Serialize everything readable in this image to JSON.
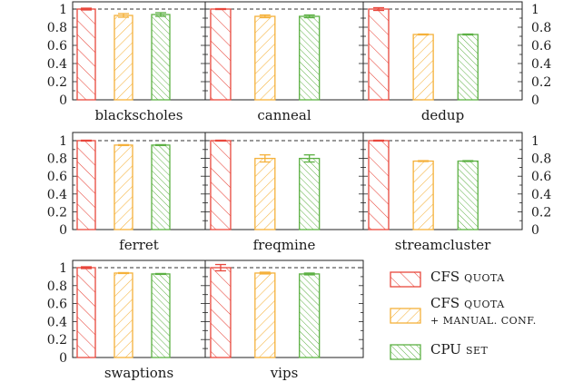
{
  "chart_data": {
    "type": "bar",
    "ylim": [
      0,
      1.05
    ],
    "yticks": [
      "0",
      "0.2",
      "0.4",
      "0.6",
      "0.8",
      "1"
    ],
    "reference_line": 1,
    "grid": false,
    "legend_position": "bottom-right",
    "series": [
      {
        "name_main": "CFS",
        "name_sub": "QUOTA",
        "name_sub2": "",
        "color": "#e8473c",
        "pattern": "back-diagonal"
      },
      {
        "name_main": "CFS",
        "name_sub": "QUOTA",
        "name_sub2": "+ MANUAL. CONF.",
        "color": "#f5b13a",
        "pattern": "forward-diagonal"
      },
      {
        "name_main": "CPU",
        "name_sub": "SET",
        "name_sub2": "",
        "color": "#5cb043",
        "pattern": "back-diagonal-dense"
      }
    ],
    "panels": [
      {
        "name": "blackscholes",
        "values": [
          1.0,
          0.93,
          0.94
        ],
        "errors": [
          0.01,
          0.02,
          0.02
        ]
      },
      {
        "name": "canneal",
        "values": [
          1.0,
          0.92,
          0.92
        ],
        "errors": [
          0.005,
          0.015,
          0.015
        ]
      },
      {
        "name": "dedup",
        "values": [
          1.0,
          0.72,
          0.72
        ],
        "errors": [
          0.015,
          0.005,
          0.005
        ]
      },
      {
        "name": "ferret",
        "values": [
          1.0,
          0.95,
          0.95
        ],
        "errors": [
          0.005,
          0.005,
          0.005
        ]
      },
      {
        "name": "freqmine",
        "values": [
          1.0,
          0.8,
          0.8
        ],
        "errors": [
          0.005,
          0.04,
          0.04
        ]
      },
      {
        "name": "streamcluster",
        "values": [
          1.0,
          0.77,
          0.77
        ],
        "errors": [
          0.005,
          0.005,
          0.005
        ]
      },
      {
        "name": "swaptions",
        "values": [
          1.0,
          0.94,
          0.93
        ],
        "errors": [
          0.01,
          0.005,
          0.005
        ]
      },
      {
        "name": "vips",
        "values": [
          1.0,
          0.94,
          0.93
        ],
        "errors": [
          0.035,
          0.01,
          0.01
        ]
      }
    ]
  }
}
